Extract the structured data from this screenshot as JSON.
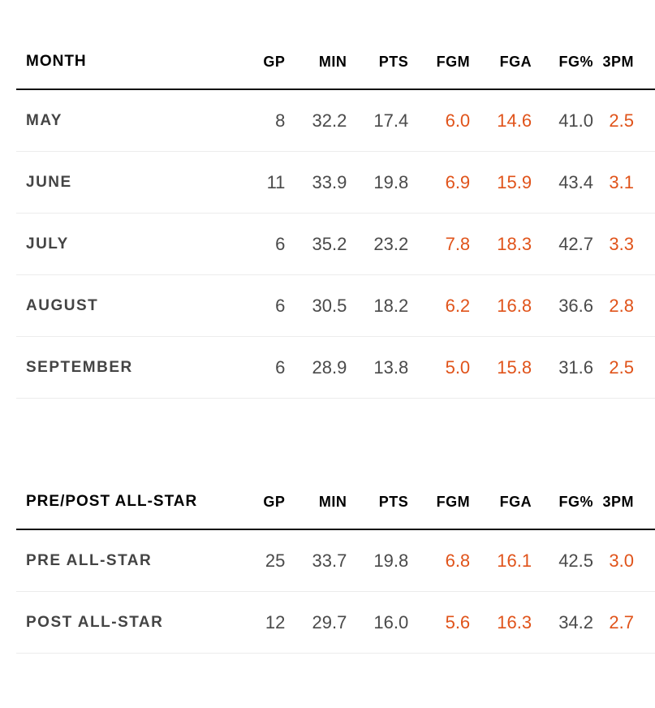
{
  "accent_color": "#e0531a",
  "columns": [
    "GP",
    "MIN",
    "PTS",
    "FGM",
    "FGA",
    "FG%",
    "3PM"
  ],
  "month_table": {
    "label_header": "MONTH",
    "rows": [
      {
        "label": "MAY",
        "values": [
          "8",
          "32.2",
          "17.4",
          "6.0",
          "14.6",
          "41.0",
          "2.5"
        ]
      },
      {
        "label": "JUNE",
        "values": [
          "11",
          "33.9",
          "19.8",
          "6.9",
          "15.9",
          "43.4",
          "3.1"
        ]
      },
      {
        "label": "JULY",
        "values": [
          "6",
          "35.2",
          "23.2",
          "7.8",
          "18.3",
          "42.7",
          "3.3"
        ]
      },
      {
        "label": "AUGUST",
        "values": [
          "6",
          "30.5",
          "18.2",
          "6.2",
          "16.8",
          "36.6",
          "2.8"
        ]
      },
      {
        "label": "SEPTEMBER",
        "values": [
          "6",
          "28.9",
          "13.8",
          "5.0",
          "15.8",
          "31.6",
          "2.5"
        ]
      }
    ]
  },
  "allstar_table": {
    "label_header": "PRE/POST ALL-STAR",
    "rows": [
      {
        "label": "PRE ALL-STAR",
        "values": [
          "25",
          "33.7",
          "19.8",
          "6.8",
          "16.1",
          "42.5",
          "3.0"
        ]
      },
      {
        "label": "POST ALL-STAR",
        "values": [
          "12",
          "29.7",
          "16.0",
          "5.6",
          "16.3",
          "34.2",
          "2.7"
        ]
      }
    ]
  }
}
